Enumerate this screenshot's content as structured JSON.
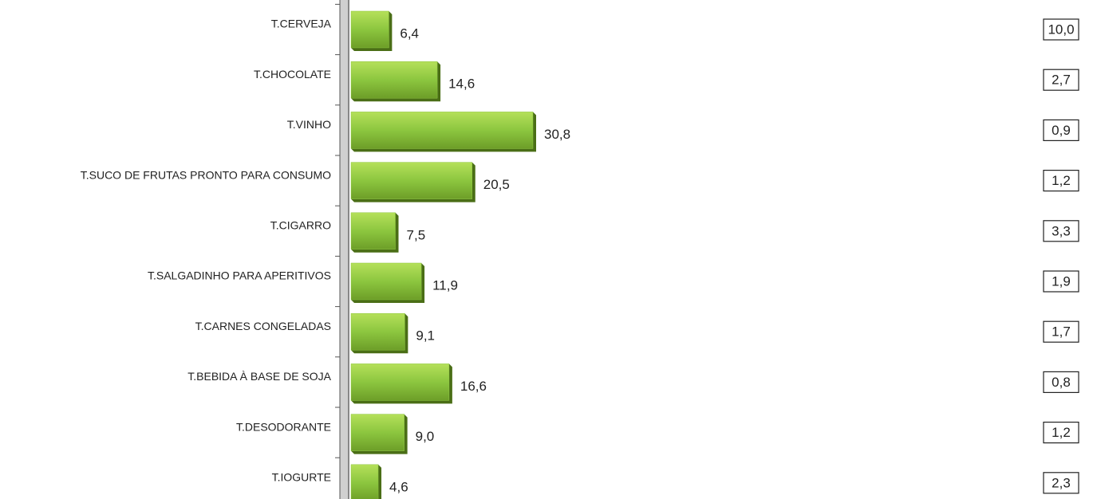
{
  "chart_data": {
    "type": "bar",
    "orientation": "horizontal",
    "categories": [
      "T.CERVEJA",
      "T.CHOCOLATE",
      "T.VINHO",
      "T.SUCO DE FRUTAS PRONTO PARA CONSUMO",
      "T.CIGARRO",
      "T.SALGADINHO PARA APERITIVOS",
      "T.CARNES CONGELADAS",
      "T.BEBIDA À BASE DE SOJA",
      "T.DESODORANTE",
      "T.IOGURTE"
    ],
    "values": [
      6.4,
      14.6,
      30.8,
      20.5,
      7.5,
      11.9,
      9.1,
      16.6,
      9.0,
      4.6
    ],
    "value_labels": [
      "6,4",
      "14,6",
      "30,8",
      "20,5",
      "7,5",
      "11,9",
      "9,1",
      "16,6",
      "9,0",
      "4,6"
    ],
    "color": "#8cc63f",
    "index_values": [
      10.0,
      2.7,
      0.9,
      1.2,
      3.3,
      1.9,
      1.7,
      0.8,
      1.2,
      2.3
    ],
    "index_value_labels": [
      "10,0",
      "2,7",
      "0,9",
      "1,2",
      "3,3",
      "1,9",
      "1,7",
      "0,8",
      "1,2",
      "2,3"
    ]
  }
}
